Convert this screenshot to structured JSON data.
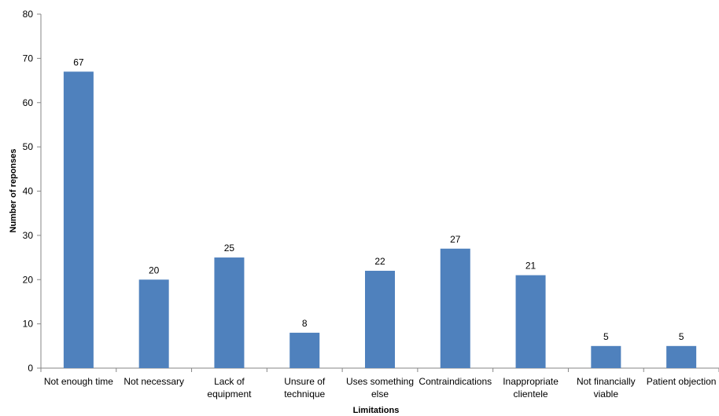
{
  "chart_data": {
    "type": "bar",
    "title": "",
    "xlabel": "Limitations",
    "ylabel": "Number of reponses",
    "ylim": [
      0,
      80
    ],
    "yticks": [
      0,
      10,
      20,
      30,
      40,
      50,
      60,
      70,
      80
    ],
    "grid": false,
    "legend": "none",
    "bar_color": "#4f81bd",
    "categories": [
      [
        "Not enough time"
      ],
      [
        "Not necessary"
      ],
      [
        "Lack of",
        "equipment"
      ],
      [
        "Unsure of",
        "technique"
      ],
      [
        "Uses something",
        "else"
      ],
      [
        "Contraindications"
      ],
      [
        "Inappropriate",
        "clientele"
      ],
      [
        "Not financially",
        "viable"
      ],
      [
        "Patient objection"
      ]
    ],
    "values": [
      67,
      20,
      25,
      8,
      22,
      27,
      21,
      5,
      5
    ]
  }
}
